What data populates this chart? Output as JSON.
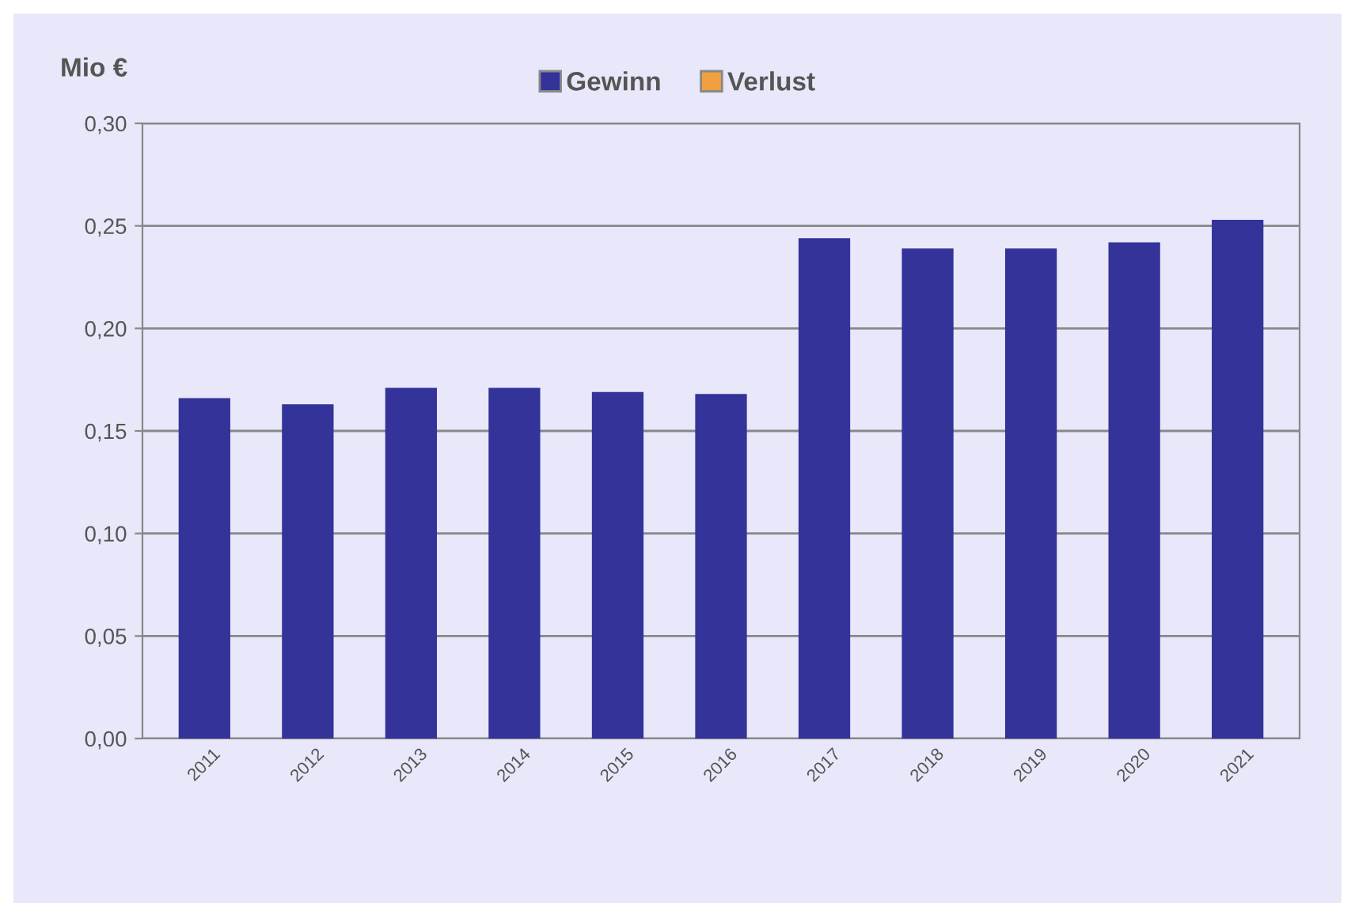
{
  "chart_data": {
    "type": "bar",
    "ylabel": "Mio €",
    "categories": [
      "2011",
      "2012",
      "2013",
      "2014",
      "2015",
      "2016",
      "2017",
      "2018",
      "2019",
      "2020",
      "2021"
    ],
    "series": [
      {
        "name": "Gewinn",
        "color": "#333399",
        "values": [
          0.166,
          0.163,
          0.171,
          0.171,
          0.169,
          0.168,
          0.244,
          0.239,
          0.239,
          0.242,
          0.253
        ]
      },
      {
        "name": "Verlust",
        "color": "#f0a040",
        "values": [
          null,
          null,
          null,
          null,
          null,
          null,
          null,
          null,
          null,
          null,
          null
        ]
      }
    ],
    "ylim": [
      0,
      0.3
    ],
    "yticks": [
      {
        "value": 0,
        "label": "0,00"
      },
      {
        "value": 0.05,
        "label": "0,05"
      },
      {
        "value": 0.1,
        "label": "0,10"
      },
      {
        "value": 0.15,
        "label": "0,15"
      },
      {
        "value": 0.2,
        "label": "0,20"
      },
      {
        "value": 0.25,
        "label": "0,25"
      },
      {
        "value": 0.3,
        "label": "0,30"
      }
    ],
    "grid": "y",
    "legend": "top",
    "stacked": true
  }
}
